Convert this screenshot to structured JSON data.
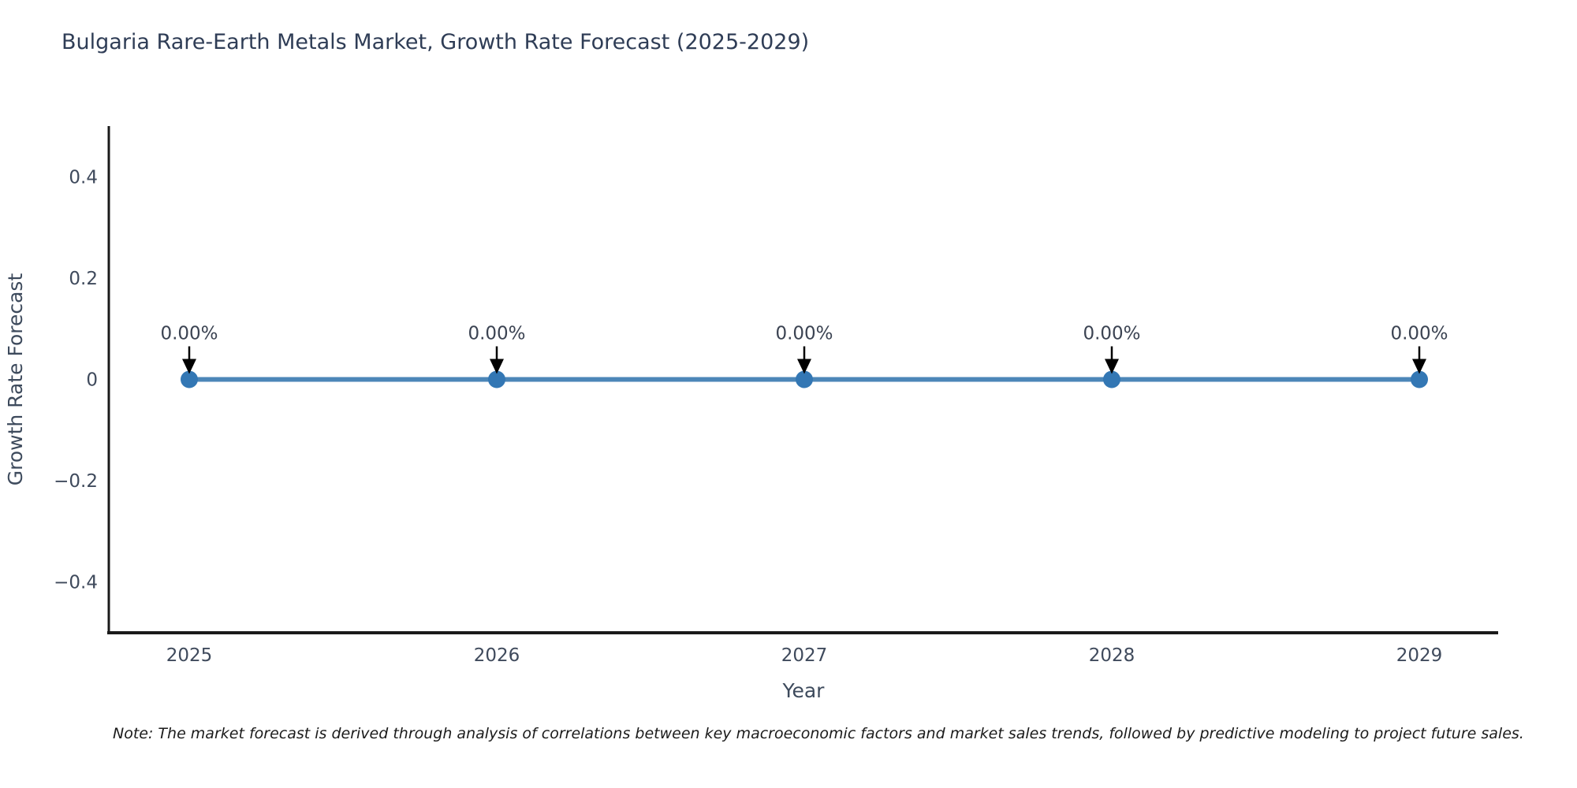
{
  "figure": {
    "note": "Note: The market forecast is derived through analysis of correlations between key macroeconomic factors and market sales trends, followed by predictive modeling to project future sales."
  },
  "chart_data": {
    "type": "line",
    "title": "Bulgaria Rare-Earth Metals Market, Growth Rate Forecast (2025-2029)",
    "xlabel": "Year",
    "ylabel": "Growth Rate Forecast",
    "categories": [
      "2025",
      "2026",
      "2027",
      "2028",
      "2029"
    ],
    "series": [
      {
        "name": "Growth Rate Forecast",
        "values": [
          0,
          0,
          0,
          0,
          0
        ]
      }
    ],
    "point_labels": [
      "0.00%",
      "0.00%",
      "0.00%",
      "0.00%",
      "0.00%"
    ],
    "ylim": [
      -0.5,
      0.5
    ],
    "yticks": {
      "values": [
        0.4,
        0.2,
        0,
        -0.2,
        -0.4
      ],
      "labels": [
        "0.4",
        "0.2",
        "0",
        "−0.2",
        "−0.4"
      ]
    },
    "grid": false,
    "legend": "none",
    "annotation_style": "value label with downward arrow at each point",
    "colors": {
      "line": "#4c86b8",
      "marker": "#3377b4",
      "arrow": "#000000",
      "tick_text": "#3f4a5c",
      "axis_title_text": "#3d4a5c",
      "title_text": "#2f3d56",
      "spine": "#1a1a1a",
      "annotation_text": "#3b4352"
    }
  }
}
